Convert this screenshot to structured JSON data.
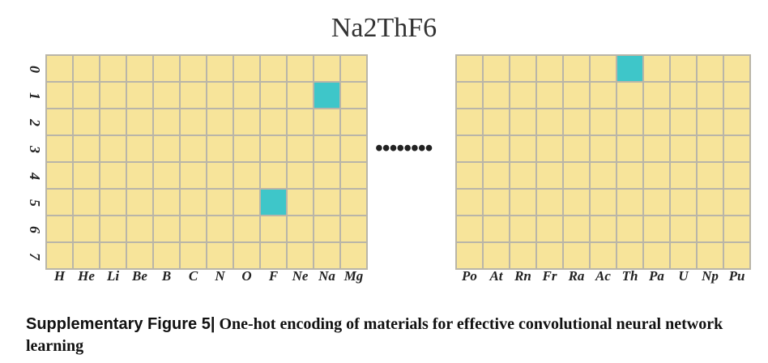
{
  "title": "Na2ThF6",
  "row_labels": [
    "0",
    "1",
    "2",
    "3",
    "4",
    "5",
    "6",
    "7"
  ],
  "left_panel": {
    "columns": [
      "H",
      "He",
      "Li",
      "Be",
      "B",
      "C",
      "N",
      "O",
      "F",
      "Ne",
      "Na",
      "Mg"
    ],
    "hot_cells": [
      {
        "row": 1,
        "col": 10
      },
      {
        "row": 5,
        "col": 8
      }
    ]
  },
  "ellipsis": "••••••••",
  "right_panel": {
    "columns": [
      "Po",
      "At",
      "Rn",
      "Fr",
      "Ra",
      "Ac",
      "Th",
      "Pa",
      "U",
      "Np",
      "Pu"
    ],
    "hot_cells": [
      {
        "row": 0,
        "col": 6
      }
    ]
  },
  "caption": {
    "label": "Supplementary Figure 5|",
    "text": " One-hot encoding of materials for effective convolutional neural network learning"
  },
  "colors": {
    "cell": "#f7e49a",
    "hot": "#3ec6c9",
    "grid_line": "#b9b5a8"
  }
}
